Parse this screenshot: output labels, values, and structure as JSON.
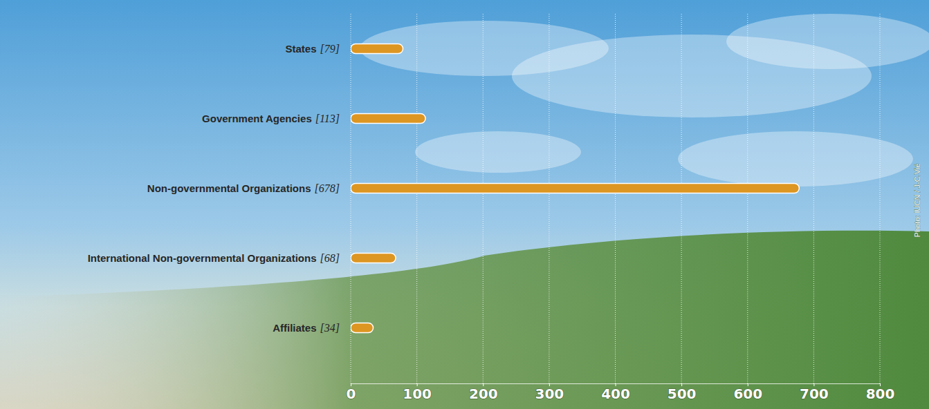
{
  "chart_data": {
    "type": "bar",
    "orientation": "horizontal",
    "categories": [
      "States",
      "Government Agencies",
      "Non-governmental Organizations",
      "International Non-governmental Organizations",
      "Affiliates"
    ],
    "values": [
      79,
      113,
      678,
      68,
      34
    ],
    "value_labels": [
      "[79]",
      "[113]",
      "[678]",
      "[68]",
      "[34]"
    ],
    "data_labels": true,
    "color": "#dd9622",
    "xlim": [
      0,
      800
    ],
    "xticks": [
      0,
      100,
      200,
      300,
      400,
      500,
      600,
      700,
      800
    ],
    "grid": true,
    "annotations": [
      "Photo: IUCN / J-C.Vié"
    ]
  }
}
